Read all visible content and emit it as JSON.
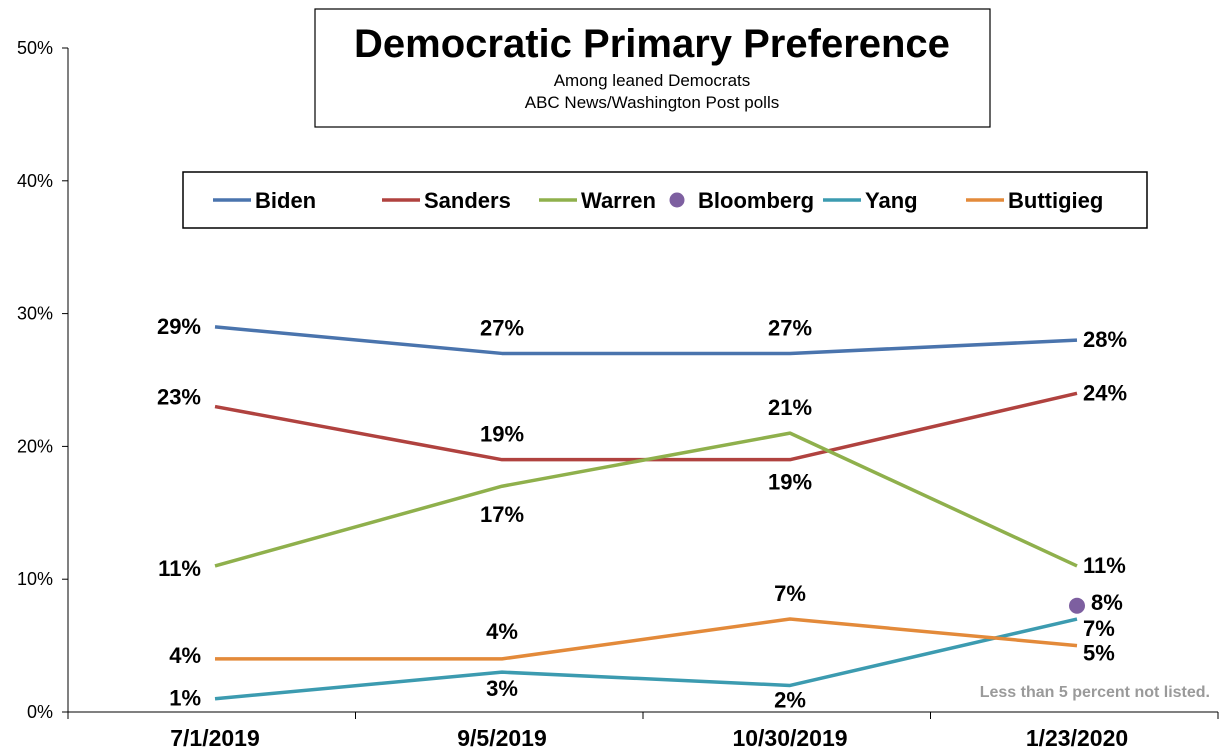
{
  "chart_data": {
    "type": "line",
    "title": "Democratic Primary Preference",
    "subtitle_lines": [
      "Among leaned Democrats",
      "ABC News/Washington Post polls"
    ],
    "categories": [
      "7/1/2019",
      "9/5/2019",
      "10/30/2019",
      "1/23/2020"
    ],
    "y_ticks": [
      "0%",
      "10%",
      "20%",
      "30%",
      "40%",
      "50%"
    ],
    "ylim": [
      0,
      50
    ],
    "grid": false,
    "legend_position": "top-center",
    "note": "Less than 5 percent not listed.",
    "series": [
      {
        "name": "Biden",
        "color": "#4a74ad",
        "values": [
          29,
          27,
          27,
          28
        ],
        "labels": [
          "29%",
          "27%",
          "27%",
          "28%"
        ]
      },
      {
        "name": "Sanders",
        "color": "#b0423f",
        "values": [
          23,
          19,
          19,
          24
        ],
        "labels": [
          "23%",
          "19%",
          "19%",
          "24%"
        ]
      },
      {
        "name": "Warren",
        "color": "#8fb04c",
        "values": [
          11,
          17,
          21,
          11
        ],
        "labels": [
          "11%",
          "17%",
          "21%",
          "11%"
        ]
      },
      {
        "name": "Bloomberg",
        "color": "#7d5fa0",
        "marker_only": true,
        "values": [
          null,
          null,
          null,
          8
        ],
        "labels": [
          null,
          null,
          null,
          "8%"
        ]
      },
      {
        "name": "Yang",
        "color": "#3c9bb0",
        "values": [
          1,
          3,
          2,
          7
        ],
        "labels": [
          "1%",
          "3%",
          "2%",
          "7%"
        ]
      },
      {
        "name": "Buttigieg",
        "color": "#e38a3a",
        "values": [
          4,
          4,
          7,
          5
        ],
        "labels": [
          "4%",
          "4%",
          "7%",
          "5%"
        ]
      }
    ]
  }
}
